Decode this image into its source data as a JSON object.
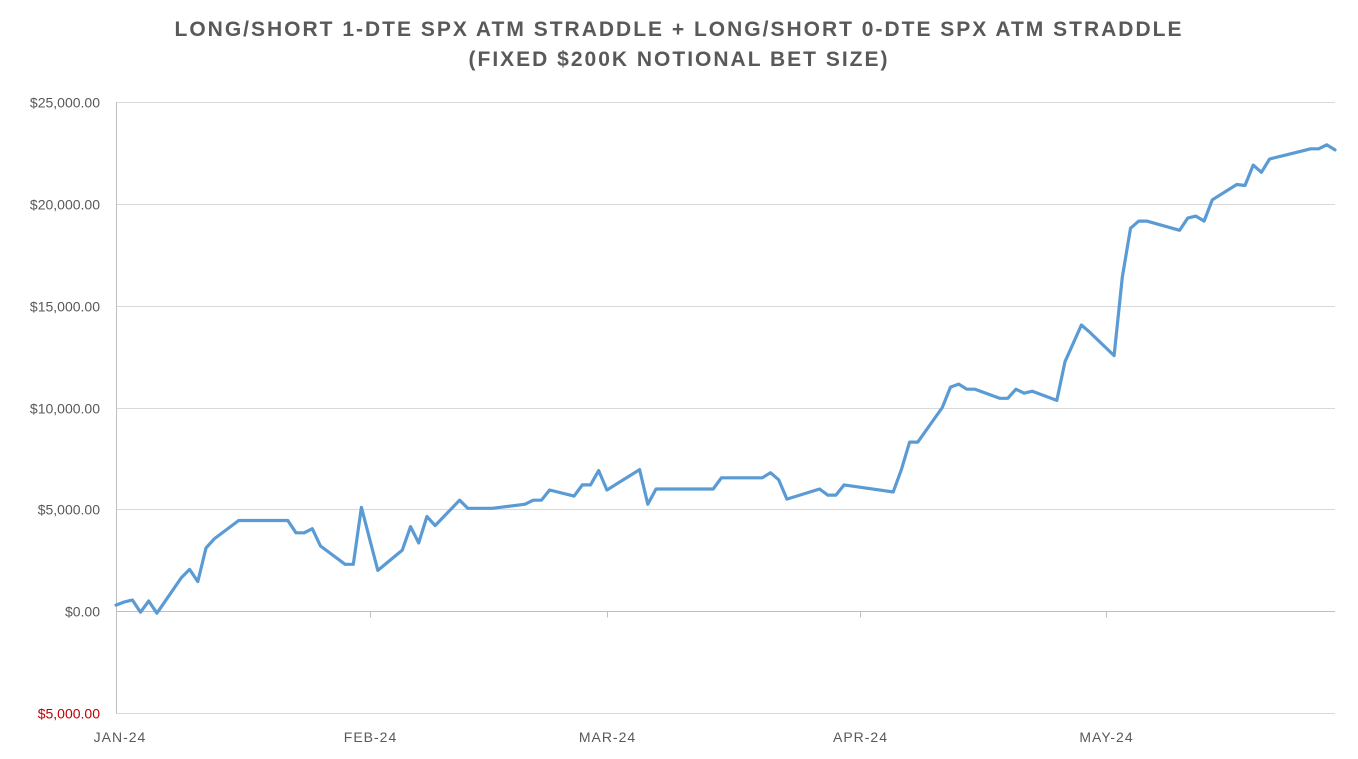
{
  "chart_data": {
    "type": "line",
    "title_lines": [
      "LONG/SHORT 1-DTE SPX ATM STRADDLE + LONG/SHORT 0-DTE SPX ATM STRADDLE",
      "(FIXED $200K NOTIONAL BET SIZE)"
    ],
    "xlabel": "",
    "ylabel": "",
    "ylim": [
      -5000,
      25000
    ],
    "y_ticks": [
      {
        "value": 25000,
        "label": "$25,000.00"
      },
      {
        "value": 20000,
        "label": "$20,000.00"
      },
      {
        "value": 15000,
        "label": "$15,000.00"
      },
      {
        "value": 10000,
        "label": "$10,000.00"
      },
      {
        "value": 5000,
        "label": "$5,000.00"
      },
      {
        "value": 0,
        "label": "$0.00"
      },
      {
        "value": -5000,
        "label": "$5,000.00"
      }
    ],
    "negative_tick_color": "#c00000",
    "x_range": [
      "2024-01-01",
      "2024-05-29"
    ],
    "x_ticks": [
      {
        "date": "2024-01-01",
        "label": "JAN-24"
      },
      {
        "date": "2024-02-01",
        "label": "FEB-24"
      },
      {
        "date": "2024-03-01",
        "label": "MAR-24"
      },
      {
        "date": "2024-04-01",
        "label": "APR-24"
      },
      {
        "date": "2024-05-01",
        "label": "MAY-24"
      }
    ],
    "grid": true,
    "legend": "none",
    "line_color": "#5b9bd5",
    "grid_color": "#d9d9d9",
    "axis_color": "#bfbfbf",
    "series": [
      {
        "points": [
          [
            "2024-01-01",
            300
          ],
          [
            "2024-01-02",
            450
          ],
          [
            "2024-01-03",
            550
          ],
          [
            "2024-01-04",
            -50
          ],
          [
            "2024-01-05",
            500
          ],
          [
            "2024-01-06",
            -100
          ],
          [
            "2024-01-09",
            1650
          ],
          [
            "2024-01-10",
            2050
          ],
          [
            "2024-01-11",
            1450
          ],
          [
            "2024-01-12",
            3100
          ],
          [
            "2024-01-13",
            3550
          ],
          [
            "2024-01-16",
            4450
          ],
          [
            "2024-01-22",
            4450
          ],
          [
            "2024-01-23",
            3850
          ],
          [
            "2024-01-24",
            3850
          ],
          [
            "2024-01-25",
            4050
          ],
          [
            "2024-01-26",
            3200
          ],
          [
            "2024-01-29",
            2300
          ],
          [
            "2024-01-30",
            2300
          ],
          [
            "2024-01-31",
            5100
          ],
          [
            "2024-02-02",
            2000
          ],
          [
            "2024-02-05",
            3000
          ],
          [
            "2024-02-06",
            4150
          ],
          [
            "2024-02-07",
            3350
          ],
          [
            "2024-02-08",
            4650
          ],
          [
            "2024-02-09",
            4200
          ],
          [
            "2024-02-12",
            5450
          ],
          [
            "2024-02-13",
            5050
          ],
          [
            "2024-02-16",
            5050
          ],
          [
            "2024-02-20",
            5250
          ],
          [
            "2024-02-21",
            5450
          ],
          [
            "2024-02-22",
            5450
          ],
          [
            "2024-02-23",
            5950
          ],
          [
            "2024-02-26",
            5650
          ],
          [
            "2024-02-27",
            6200
          ],
          [
            "2024-02-28",
            6200
          ],
          [
            "2024-02-29",
            6900
          ],
          [
            "2024-03-01",
            5950
          ],
          [
            "2024-03-05",
            6950
          ],
          [
            "2024-03-06",
            5250
          ],
          [
            "2024-03-07",
            6000
          ],
          [
            "2024-03-14",
            6000
          ],
          [
            "2024-03-15",
            6550
          ],
          [
            "2024-03-20",
            6550
          ],
          [
            "2024-03-21",
            6800
          ],
          [
            "2024-03-22",
            6450
          ],
          [
            "2024-03-23",
            5500
          ],
          [
            "2024-03-27",
            6000
          ],
          [
            "2024-03-28",
            5700
          ],
          [
            "2024-03-29",
            5700
          ],
          [
            "2024-03-30",
            6200
          ],
          [
            "2024-04-05",
            5850
          ],
          [
            "2024-04-06",
            6950
          ],
          [
            "2024-04-07",
            8300
          ],
          [
            "2024-04-08",
            8300
          ],
          [
            "2024-04-11",
            10000
          ],
          [
            "2024-04-12",
            11000
          ],
          [
            "2024-04-13",
            11150
          ],
          [
            "2024-04-14",
            10900
          ],
          [
            "2024-04-15",
            10900
          ],
          [
            "2024-04-18",
            10450
          ],
          [
            "2024-04-19",
            10450
          ],
          [
            "2024-04-20",
            10900
          ],
          [
            "2024-04-21",
            10700
          ],
          [
            "2024-04-22",
            10800
          ],
          [
            "2024-04-25",
            10350
          ],
          [
            "2024-04-26",
            12250
          ],
          [
            "2024-04-28",
            14050
          ],
          [
            "2024-04-29",
            13700
          ],
          [
            "2024-05-02",
            12550
          ],
          [
            "2024-05-03",
            16400
          ],
          [
            "2024-05-04",
            18800
          ],
          [
            "2024-05-05",
            19150
          ],
          [
            "2024-05-06",
            19150
          ],
          [
            "2024-05-10",
            18700
          ],
          [
            "2024-05-11",
            19300
          ],
          [
            "2024-05-12",
            19400
          ],
          [
            "2024-05-13",
            19150
          ],
          [
            "2024-05-14",
            20200
          ],
          [
            "2024-05-17",
            20950
          ],
          [
            "2024-05-18",
            20900
          ],
          [
            "2024-05-19",
            21900
          ],
          [
            "2024-05-20",
            21550
          ],
          [
            "2024-05-21",
            22200
          ],
          [
            "2024-05-25",
            22600
          ],
          [
            "2024-05-26",
            22700
          ],
          [
            "2024-05-27",
            22700
          ],
          [
            "2024-05-28",
            22900
          ],
          [
            "2024-05-29",
            22650
          ]
        ]
      }
    ]
  }
}
